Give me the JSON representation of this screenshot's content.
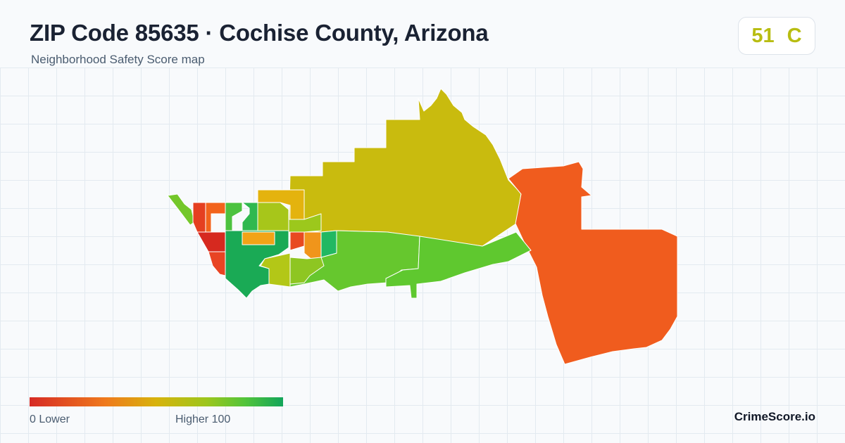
{
  "header": {
    "title": "ZIP Code 85635 · Cochise County, Arizona",
    "subtitle": "Neighborhood Safety Score map"
  },
  "score": {
    "value": "51",
    "grade": "C",
    "color": "#b8bd12"
  },
  "legend": {
    "min_label": "0  Lower",
    "max_label": "Higher  100",
    "colors": [
      "#d62a24",
      "#ef7a1d",
      "#d7b30c",
      "#9cc61d",
      "#52c43a",
      "#13a55a"
    ]
  },
  "brand": "CrimeScore.io",
  "map": {
    "regions": [
      {
        "name": "northern-rural",
        "color": "#c9bb0e"
      },
      {
        "name": "eastern-rural",
        "color": "#f05c1e"
      },
      {
        "name": "central-east",
        "color": "#66c72e"
      },
      {
        "name": "central-east-2",
        "color": "#5fc82f"
      },
      {
        "name": "northwest-arm",
        "color": "#74c72a"
      },
      {
        "name": "west-red-1",
        "color": "#e53f20"
      },
      {
        "name": "west-red-2",
        "color": "#f2631c"
      },
      {
        "name": "west-red-3",
        "color": "#d6291f"
      },
      {
        "name": "west-red-4",
        "color": "#e84423"
      },
      {
        "name": "west-green-1",
        "color": "#4cc23f"
      },
      {
        "name": "west-green-2",
        "color": "#2fb84f"
      },
      {
        "name": "central-green-large",
        "color": "#1aaa55"
      },
      {
        "name": "central-orange",
        "color": "#f2a317"
      },
      {
        "name": "north-orange",
        "color": "#e4b30e"
      },
      {
        "name": "central-yellowgreen",
        "color": "#a7c61a"
      },
      {
        "name": "central-light-green",
        "color": "#9cc81c"
      },
      {
        "name": "east-green",
        "color": "#22b862"
      },
      {
        "name": "east-red",
        "color": "#e84a20"
      },
      {
        "name": "east-orange",
        "color": "#f0951b"
      },
      {
        "name": "south-yellowgreen",
        "color": "#b3c717"
      },
      {
        "name": "south-light-green",
        "color": "#8ec622"
      }
    ]
  }
}
